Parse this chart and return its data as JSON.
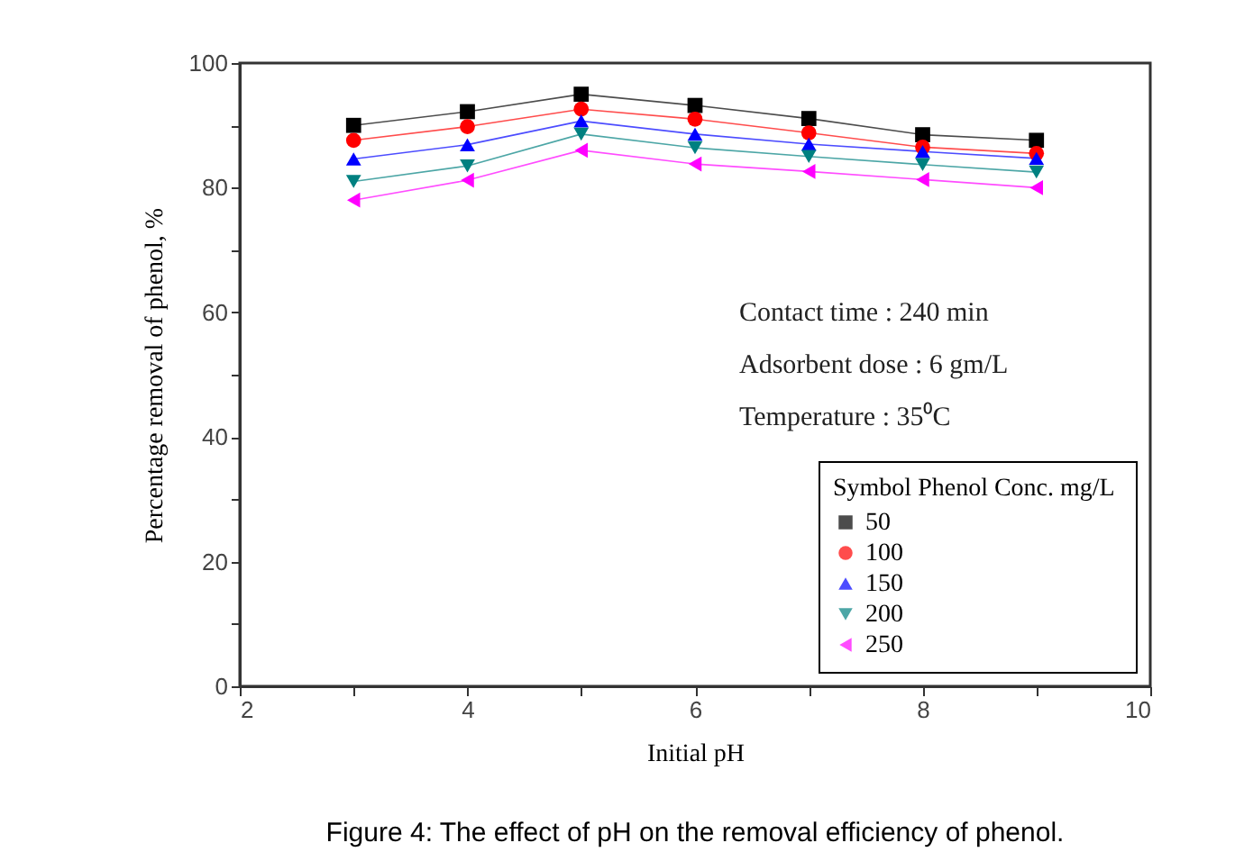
{
  "chart_data": {
    "type": "line",
    "title": "Figure 4: The effect of pH on the removal efficiency of phenol.",
    "xlabel": "Initial pH",
    "ylabel": "Percentage removal of phenol, %",
    "x": [
      3,
      4,
      5,
      6,
      7,
      8,
      9
    ],
    "series": [
      {
        "name": "50",
        "color": "#000000",
        "marker": "square",
        "values": [
          90,
          92.2,
          95,
          93.2,
          91.1,
          88.5,
          87.6
        ]
      },
      {
        "name": "100",
        "color": "#ff0000",
        "marker": "circle",
        "values": [
          87.6,
          89.8,
          92.6,
          91,
          88.8,
          86.5,
          85.5
        ]
      },
      {
        "name": "150",
        "color": "#0000ff",
        "marker": "triangle",
        "values": [
          84.6,
          86.9,
          90.7,
          88.6,
          87,
          85.8,
          84.7
        ]
      },
      {
        "name": "200",
        "color": "#008080",
        "marker": "triangle-down",
        "values": [
          81,
          83.5,
          88.6,
          86.4,
          85,
          83.7,
          82.5
        ]
      },
      {
        "name": "250",
        "color": "#ff00ff",
        "marker": "triangle-left",
        "values": [
          78,
          81.2,
          86,
          83.8,
          82.6,
          81.3,
          80
        ]
      }
    ],
    "xlim": [
      2,
      10
    ],
    "xticks": [
      2,
      {
        "value": 3,
        "label": null
      },
      4,
      {
        "value": 5,
        "label": null
      },
      6,
      {
        "value": 7,
        "label": null
      },
      8,
      {
        "value": 9,
        "label": null
      },
      10
    ],
    "ylim": [
      0,
      100
    ],
    "yticks": [
      0,
      {
        "value": 10,
        "label": null
      },
      20,
      {
        "value": 30,
        "label": null
      },
      40,
      {
        "value": 50,
        "label": null
      },
      60,
      {
        "value": 70,
        "label": null
      },
      80,
      {
        "value": 90,
        "label": null
      },
      100
    ],
    "legend_title": "Symbol  Phenol Conc. mg/L",
    "legend": "bottom right",
    "annotations": [
      "Contact time : 240 min",
      "Adsorbent dose : 6 gm/L",
      "Temperature : 35⁰C"
    ],
    "grid": false,
    "line_style": "solid"
  }
}
